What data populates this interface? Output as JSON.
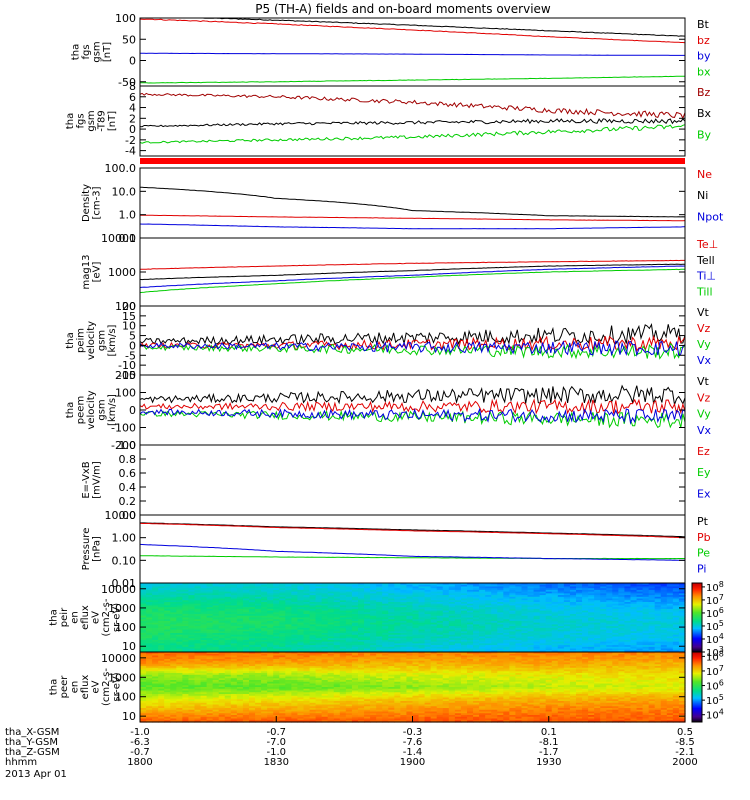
{
  "title": "P5 (TH-A) fields and on-board moments overview",
  "colors": {
    "black": "#000000",
    "red": "#e00000",
    "blue": "#0000dd",
    "green": "#00cc00",
    "darkred": "#a00000"
  },
  "chart_data": [
    {
      "type": "line",
      "id": "fgs",
      "ylabel": [
        "tha",
        "fgs",
        "gsm",
        "[nT]"
      ],
      "ylim": [
        -60,
        100
      ],
      "yticks": [
        {
          "v": 100,
          "label": "100"
        },
        {
          "v": 50,
          "label": "50"
        },
        {
          "v": 0,
          "label": "0"
        },
        {
          "v": -50,
          "label": "-50"
        }
      ],
      "x": [
        0,
        0.25,
        0.5,
        0.75,
        1
      ],
      "series": [
        {
          "name": "Bt",
          "color": "black",
          "values": [
            105,
            95,
            83,
            70,
            57
          ]
        },
        {
          "name": "bz",
          "color": "red",
          "values": [
            98,
            86,
            72,
            56,
            42
          ]
        },
        {
          "name": "by",
          "color": "blue",
          "values": [
            17,
            16,
            15,
            13,
            12
          ]
        },
        {
          "name": "bx",
          "color": "green",
          "values": [
            -53,
            -50,
            -46,
            -42,
            -37
          ]
        }
      ]
    },
    {
      "type": "line",
      "id": "fgs-dt",
      "ylabel": [
        "tha",
        "fgs",
        "gsm",
        "-T89",
        "[nT]"
      ],
      "ylim": [
        -5,
        8
      ],
      "yticks": [
        {
          "v": 8,
          "label": "8"
        },
        {
          "v": 6,
          "label": "6"
        },
        {
          "v": 4,
          "label": "4"
        },
        {
          "v": 2,
          "label": "2"
        },
        {
          "v": 0,
          "label": "0"
        },
        {
          "v": -2,
          "label": "-2"
        },
        {
          "v": -4,
          "label": "-4"
        }
      ],
      "x": [
        0,
        0.25,
        0.5,
        0.75,
        1
      ],
      "noise": 0.35,
      "series": [
        {
          "name": "Bz",
          "color": "darkred",
          "values": [
            6.5,
            6.0,
            5.0,
            3.5,
            2.5
          ]
        },
        {
          "name": "Bx",
          "color": "black",
          "values": [
            0.5,
            1.0,
            1.2,
            1.5,
            1.5
          ]
        },
        {
          "name": "By",
          "color": "green",
          "values": [
            -2.5,
            -2.0,
            -1.5,
            -0.5,
            0.5
          ]
        }
      ]
    },
    {
      "type": "line",
      "id": "density",
      "log": true,
      "ylabel": [
        "Density",
        "[cm-3]"
      ],
      "ylim": [
        0.1,
        100
      ],
      "yticks": [
        {
          "v": 100,
          "label": "100.0"
        },
        {
          "v": 10,
          "label": "10.0"
        },
        {
          "v": 1,
          "label": "1.0"
        },
        {
          "v": 0.1,
          "label": "0.1"
        }
      ],
      "x": [
        0,
        0.25,
        0.5,
        0.75,
        1
      ],
      "series": [
        {
          "name": "Ne",
          "color": "red",
          "values": [
            0.95,
            0.8,
            0.7,
            0.6,
            0.55
          ]
        },
        {
          "name": "Ni",
          "color": "black",
          "values": [
            15,
            5,
            1.5,
            0.9,
            0.8
          ]
        },
        {
          "name": "Npot",
          "color": "blue",
          "values": [
            0.4,
            0.3,
            0.25,
            0.25,
            0.3
          ]
        }
      ]
    },
    {
      "type": "line",
      "id": "temperature",
      "log": true,
      "ylabel": [
        "mag13",
        "[eV]"
      ],
      "ylim": [
        100,
        10000
      ],
      "yticks": [
        {
          "v": 10000,
          "label": "10000"
        },
        {
          "v": 1000,
          "label": "1000"
        },
        {
          "v": 100,
          "label": "100"
        }
      ],
      "x": [
        0,
        0.25,
        0.5,
        0.75,
        1
      ],
      "series": [
        {
          "name": "Te⊥",
          "color": "red",
          "values": [
            1200,
            1500,
            1800,
            2000,
            2200
          ]
        },
        {
          "name": "Tell",
          "color": "black",
          "values": [
            600,
            800,
            1100,
            1500,
            1700
          ]
        },
        {
          "name": "Ti⊥",
          "color": "blue",
          "values": [
            350,
            550,
            800,
            1200,
            1500
          ]
        },
        {
          "name": "Till",
          "color": "green",
          "values": [
            250,
            450,
            700,
            1000,
            1200
          ]
        }
      ]
    },
    {
      "type": "line",
      "id": "peim-velocity",
      "ylabel": [
        "tha",
        "peim",
        "velocity",
        "gsm",
        "[km/s]"
      ],
      "ylim": [
        -15,
        20
      ],
      "yticks": [
        {
          "v": 20,
          "label": "20"
        },
        {
          "v": 15,
          "label": "15"
        },
        {
          "v": 10,
          "label": "10"
        },
        {
          "v": 5,
          "label": "5"
        },
        {
          "v": 0,
          "label": "0"
        },
        {
          "v": -5,
          "label": "-5"
        },
        {
          "v": -10,
          "label": "-10"
        },
        {
          "v": -15,
          "label": "-15"
        }
      ],
      "x": [
        0,
        0.25,
        0.5,
        0.75,
        1
      ],
      "noise": 3,
      "series": [
        {
          "name": "Vt",
          "color": "black",
          "values": [
            2,
            3,
            4,
            5,
            6
          ]
        },
        {
          "name": "Vz",
          "color": "red",
          "values": [
            0,
            0,
            0.5,
            1,
            1
          ]
        },
        {
          "name": "Vy",
          "color": "green",
          "values": [
            -1,
            -1.5,
            -2,
            -3,
            -3
          ]
        },
        {
          "name": "Vx",
          "color": "blue",
          "values": [
            0,
            -0.5,
            -1,
            -1,
            -1.5
          ]
        }
      ]
    },
    {
      "type": "line",
      "id": "peem-velocity",
      "ylabel": [
        "tha",
        "peem",
        "velocity",
        "gsm",
        "[km/s]"
      ],
      "ylim": [
        -200,
        200
      ],
      "yticks": [
        {
          "v": 200,
          "label": "200"
        },
        {
          "v": 100,
          "label": "100"
        },
        {
          "v": 0,
          "label": "0"
        },
        {
          "v": -100,
          "label": "-100"
        },
        {
          "v": -200,
          "label": "-200"
        }
      ],
      "x": [
        0,
        0.25,
        0.5,
        0.75,
        1
      ],
      "noise": 35,
      "series": [
        {
          "name": "Vt",
          "color": "black",
          "values": [
            60,
            70,
            80,
            85,
            90
          ]
        },
        {
          "name": "Vz",
          "color": "red",
          "values": [
            20,
            20,
            20,
            20,
            20
          ]
        },
        {
          "name": "Vy",
          "color": "green",
          "values": [
            -20,
            -30,
            -40,
            -50,
            -60
          ]
        },
        {
          "name": "Vx",
          "color": "blue",
          "values": [
            -10,
            -20,
            -30,
            -30,
            -40
          ]
        }
      ]
    },
    {
      "type": "line",
      "id": "e-vxb",
      "ylabel": [
        "E=-VxB",
        "[mV/m]"
      ],
      "ylim": [
        0,
        1
      ],
      "yticks": [
        {
          "v": 1,
          "label": "1.0"
        },
        {
          "v": 0.8,
          "label": "0.8"
        },
        {
          "v": 0.6,
          "label": "0.6"
        },
        {
          "v": 0.4,
          "label": "0.4"
        },
        {
          "v": 0.2,
          "label": "0.2"
        },
        {
          "v": 0,
          "label": "0.0"
        }
      ],
      "x": [],
      "series": [
        {
          "name": "Ez",
          "color": "red",
          "values": []
        },
        {
          "name": "Ey",
          "color": "green",
          "values": []
        },
        {
          "name": "Ex",
          "color": "blue",
          "values": []
        }
      ]
    },
    {
      "type": "line",
      "id": "pressure",
      "log": true,
      "ylabel": [
        "Pressure",
        "[nPa]"
      ],
      "ylim": [
        0.01,
        10
      ],
      "yticks": [
        {
          "v": 10,
          "label": "10.00"
        },
        {
          "v": 1,
          "label": "1.00"
        },
        {
          "v": 0.1,
          "label": "0.10"
        },
        {
          "v": 0.01,
          "label": "0.01"
        }
      ],
      "x": [
        0,
        0.25,
        0.5,
        0.75,
        1
      ],
      "series": [
        {
          "name": "Pt",
          "color": "black",
          "values": [
            4.5,
            3.0,
            2.2,
            1.6,
            1.1
          ]
        },
        {
          "name": "Pb",
          "color": "red",
          "values": [
            4.3,
            2.8,
            2.0,
            1.5,
            1.0
          ]
        },
        {
          "name": "Pe",
          "color": "green",
          "values": [
            0.16,
            0.14,
            0.13,
            0.12,
            0.12
          ]
        },
        {
          "name": "Pi",
          "color": "blue",
          "values": [
            0.5,
            0.25,
            0.15,
            0.12,
            0.1
          ]
        }
      ]
    },
    {
      "type": "heatmap",
      "id": "peir",
      "log": true,
      "ylabel": [
        "tha",
        "peir",
        "en",
        "eflux",
        "eV",
        "(cm2-s-",
        "sr-eV)"
      ],
      "ylim": [
        5,
        20000
      ],
      "yticks": [
        {
          "v": 10000,
          "label": "10000"
        },
        {
          "v": 1000,
          "label": "1000"
        },
        {
          "v": 100,
          "label": "100"
        },
        {
          "v": 10,
          "label": "10"
        }
      ],
      "colorbar": {
        "ticks": [
          {
            "v": 8,
            "label": "10"
          },
          {
            "v": 7,
            "label": "10"
          },
          {
            "v": 6,
            "label": "10"
          },
          {
            "v": 5,
            "label": "10"
          },
          {
            "v": 4,
            "label": "10"
          },
          {
            "v": 3,
            "label": "10"
          }
        ],
        "exp": [
          "8",
          "7",
          "6",
          "5",
          "4",
          "3"
        ],
        "range": [
          3,
          8.3
        ]
      },
      "z_rows": [
        [
          5.0,
          5.0,
          4.8,
          4.5,
          4.3
        ],
        [
          5.3,
          5.2,
          5.0,
          4.8,
          4.6
        ],
        [
          5.6,
          5.5,
          5.2,
          5.0,
          4.9
        ],
        [
          5.7,
          5.6,
          5.3,
          5.1,
          5.0
        ],
        [
          5.6,
          5.4,
          5.2,
          5.0,
          4.9
        ],
        [
          5.4,
          5.3,
          5.0,
          4.8,
          4.7
        ]
      ],
      "x": [
        0,
        0.25,
        0.5,
        0.75,
        1
      ]
    },
    {
      "type": "heatmap",
      "id": "peer",
      "log": true,
      "ylabel": [
        "tha",
        "peer",
        "en",
        "eflux",
        "eV",
        "(cm2-s-",
        "sr-eV)"
      ],
      "ylim": [
        5,
        20000
      ],
      "yticks": [
        {
          "v": 10000,
          "label": "10000"
        },
        {
          "v": 1000,
          "label": "1000"
        },
        {
          "v": 100,
          "label": "100"
        },
        {
          "v": 10,
          "label": "10"
        }
      ],
      "colorbar": {
        "ticks": [
          {
            "v": 8,
            "label": "10"
          },
          {
            "v": 7,
            "label": "10"
          },
          {
            "v": 6,
            "label": "10"
          },
          {
            "v": 5,
            "label": "10"
          },
          {
            "v": 4,
            "label": "10"
          }
        ],
        "exp": [
          "8",
          "7",
          "6",
          "5",
          "4"
        ],
        "range": [
          3.5,
          8.3
        ]
      },
      "z_rows": [
        [
          7.6,
          7.6,
          7.5,
          7.5,
          7.5
        ],
        [
          7.4,
          7.3,
          7.2,
          7.3,
          7.2
        ],
        [
          6.5,
          6.6,
          6.8,
          6.9,
          7.0
        ],
        [
          6.3,
          6.3,
          6.5,
          6.7,
          6.8
        ],
        [
          6.8,
          6.9,
          7.1,
          7.2,
          7.3
        ],
        [
          7.2,
          7.3,
          7.4,
          7.5,
          7.5
        ],
        [
          7.7,
          7.7,
          7.7,
          7.7,
          7.7
        ]
      ],
      "x": [
        0,
        0.25,
        0.5,
        0.75,
        1
      ]
    }
  ],
  "xaxis": {
    "rows": [
      {
        "label": "tha_X-GSM",
        "values": [
          "-1.0",
          "-0.7",
          "-0.3",
          "0.1",
          "0.5"
        ]
      },
      {
        "label": "tha_Y-GSM",
        "values": [
          "-6.3",
          "-7.0",
          "-7.6",
          "-8.1",
          "-8.5"
        ]
      },
      {
        "label": "tha_Z-GSM",
        "values": [
          "-0.7",
          "-1.0",
          "-1.4",
          "-1.7",
          "-2.1"
        ]
      },
      {
        "label": "hhmm",
        "values": [
          "1800",
          "1830",
          "1900",
          "1930",
          "2000"
        ]
      }
    ],
    "date": "2013 Apr 01"
  }
}
